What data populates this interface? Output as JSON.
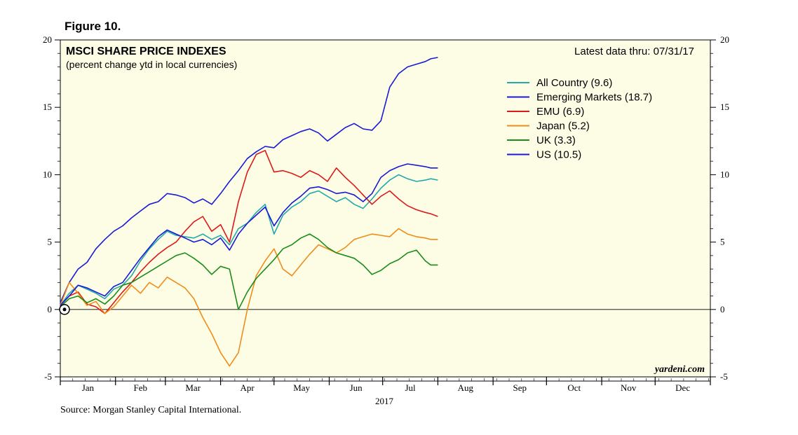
{
  "figure_label": "Figure 10.",
  "source": "Source: Morgan Stanley Capital International.",
  "chart_data": {
    "type": "line",
    "title": "MSCI SHARE PRICE INDEXES",
    "subtitle": "(percent change ytd in local currencies)",
    "latest": "Latest data thru: 07/31/17",
    "watermark": "yardeni.com",
    "year_label": "2017",
    "months": [
      "Jan",
      "Feb",
      "Mar",
      "Apr",
      "May",
      "Jun",
      "Jul",
      "Aug",
      "Sep",
      "Oct",
      "Nov",
      "Dec"
    ],
    "ylim": [
      -5,
      20
    ],
    "yticks": [
      -5,
      0,
      5,
      10,
      15,
      20
    ],
    "x_unit": "day of year (0 = Jan 1, 365 = Dec 31)",
    "series": [
      {
        "name": "All Country (9.6)",
        "color": "#22aaaa",
        "x": [
          0,
          5,
          10,
          15,
          20,
          25,
          30,
          35,
          40,
          45,
          50,
          55,
          60,
          65,
          70,
          75,
          80,
          85,
          90,
          95,
          100,
          105,
          110,
          115,
          120,
          125,
          130,
          135,
          140,
          145,
          150,
          155,
          160,
          165,
          170,
          175,
          180,
          185,
          190,
          195,
          200,
          205,
          208,
          212
        ],
        "y": [
          0.3,
          1.2,
          1.8,
          1.5,
          1.2,
          0.8,
          1.5,
          1.8,
          2.5,
          3.6,
          4.5,
          5.2,
          5.8,
          5.5,
          5.4,
          5.3,
          5.6,
          5.2,
          5.5,
          4.8,
          6.0,
          6.4,
          7.2,
          7.8,
          5.6,
          7.0,
          7.6,
          8.0,
          8.6,
          8.8,
          8.4,
          8.0,
          8.3,
          7.8,
          7.5,
          8.2,
          9.0,
          9.6,
          10.0,
          9.7,
          9.5,
          9.6,
          9.7,
          9.6
        ]
      },
      {
        "name": "Emerging Markets (18.7)",
        "color": "#1a1ad6",
        "x": [
          0,
          5,
          10,
          15,
          20,
          25,
          30,
          35,
          40,
          45,
          50,
          55,
          60,
          65,
          70,
          75,
          80,
          85,
          90,
          95,
          100,
          105,
          110,
          115,
          120,
          125,
          130,
          135,
          140,
          145,
          150,
          155,
          160,
          165,
          170,
          175,
          180,
          185,
          190,
          195,
          200,
          205,
          208,
          212
        ],
        "y": [
          0.5,
          2.0,
          3.0,
          3.5,
          4.5,
          5.2,
          5.8,
          6.2,
          6.8,
          7.3,
          7.8,
          8.0,
          8.6,
          8.5,
          8.3,
          7.9,
          8.2,
          7.8,
          8.6,
          9.5,
          10.3,
          11.2,
          11.7,
          12.1,
          12.0,
          12.6,
          12.9,
          13.2,
          13.4,
          13.1,
          12.5,
          13.0,
          13.5,
          13.8,
          13.4,
          13.3,
          14.0,
          16.5,
          17.5,
          18.0,
          18.2,
          18.4,
          18.6,
          18.7
        ]
      },
      {
        "name": "EMU (6.9)",
        "color": "#dd1a1a",
        "x": [
          0,
          5,
          10,
          15,
          20,
          25,
          30,
          35,
          40,
          45,
          50,
          55,
          60,
          65,
          70,
          75,
          80,
          85,
          90,
          95,
          100,
          105,
          110,
          115,
          120,
          125,
          130,
          135,
          140,
          145,
          150,
          155,
          160,
          165,
          170,
          175,
          180,
          185,
          190,
          195,
          200,
          205,
          208,
          212
        ],
        "y": [
          0.3,
          1.0,
          1.3,
          0.4,
          0.2,
          -0.3,
          0.5,
          1.3,
          2.0,
          2.8,
          3.5,
          4.1,
          4.6,
          5.0,
          5.8,
          6.5,
          6.9,
          5.8,
          6.3,
          5.0,
          8.0,
          10.2,
          11.5,
          11.8,
          10.2,
          10.3,
          10.1,
          9.8,
          10.3,
          10.0,
          9.5,
          10.5,
          9.8,
          9.2,
          8.5,
          7.8,
          8.4,
          8.8,
          8.2,
          7.7,
          7.4,
          7.2,
          7.1,
          6.9
        ]
      },
      {
        "name": "Japan (5.2)",
        "color": "#f08c1a",
        "x": [
          0,
          5,
          10,
          15,
          20,
          25,
          30,
          35,
          40,
          45,
          50,
          55,
          60,
          65,
          70,
          75,
          80,
          85,
          90,
          95,
          100,
          105,
          110,
          115,
          120,
          125,
          130,
          135,
          140,
          145,
          150,
          155,
          160,
          165,
          170,
          175,
          180,
          185,
          190,
          195,
          200,
          205,
          208,
          212
        ],
        "y": [
          0.3,
          2.0,
          1.2,
          0.3,
          0.6,
          -0.3,
          0.2,
          1.0,
          1.8,
          1.2,
          2.0,
          1.6,
          2.4,
          2.0,
          1.6,
          0.8,
          -0.6,
          -1.8,
          -3.2,
          -4.2,
          -3.2,
          0.0,
          2.5,
          3.6,
          4.5,
          3.0,
          2.5,
          3.3,
          4.1,
          4.8,
          4.5,
          4.2,
          4.6,
          5.2,
          5.4,
          5.6,
          5.5,
          5.4,
          6.0,
          5.6,
          5.4,
          5.3,
          5.2,
          5.2
        ]
      },
      {
        "name": "UK (3.3)",
        "color": "#1a8c1a",
        "x": [
          0,
          5,
          10,
          15,
          20,
          25,
          30,
          35,
          40,
          45,
          50,
          55,
          60,
          65,
          70,
          75,
          80,
          85,
          90,
          95,
          100,
          105,
          110,
          115,
          120,
          125,
          130,
          135,
          140,
          145,
          150,
          155,
          160,
          165,
          170,
          175,
          180,
          185,
          190,
          195,
          200,
          205,
          208,
          212
        ],
        "y": [
          0.2,
          0.8,
          1.0,
          0.5,
          0.8,
          0.4,
          1.0,
          1.8,
          2.0,
          2.4,
          2.8,
          3.2,
          3.6,
          4.0,
          4.2,
          3.8,
          3.3,
          2.6,
          3.2,
          3.0,
          0.0,
          1.3,
          2.3,
          3.0,
          3.7,
          4.5,
          4.8,
          5.3,
          5.6,
          5.2,
          4.6,
          4.2,
          4.0,
          3.8,
          3.3,
          2.6,
          2.9,
          3.4,
          3.7,
          4.2,
          4.4,
          3.6,
          3.3,
          3.3
        ]
      },
      {
        "name": "US (10.5)",
        "color": "#1a1ad6",
        "x": [
          0,
          5,
          10,
          15,
          20,
          25,
          30,
          35,
          40,
          45,
          50,
          55,
          60,
          65,
          70,
          75,
          80,
          85,
          90,
          95,
          100,
          105,
          110,
          115,
          120,
          125,
          130,
          135,
          140,
          145,
          150,
          155,
          160,
          165,
          170,
          175,
          180,
          185,
          190,
          195,
          200,
          205,
          208,
          212
        ],
        "y": [
          0.3,
          1.0,
          1.8,
          1.6,
          1.3,
          1.0,
          1.7,
          2.0,
          2.9,
          3.8,
          4.6,
          5.4,
          5.9,
          5.6,
          5.3,
          5.0,
          5.2,
          4.8,
          5.3,
          4.4,
          5.6,
          6.4,
          7.0,
          7.6,
          6.2,
          7.2,
          7.9,
          8.4,
          9.0,
          9.1,
          8.9,
          8.6,
          8.7,
          8.5,
          8.0,
          8.6,
          9.8,
          10.3,
          10.6,
          10.8,
          10.7,
          10.6,
          10.5,
          10.5
        ]
      }
    ]
  }
}
